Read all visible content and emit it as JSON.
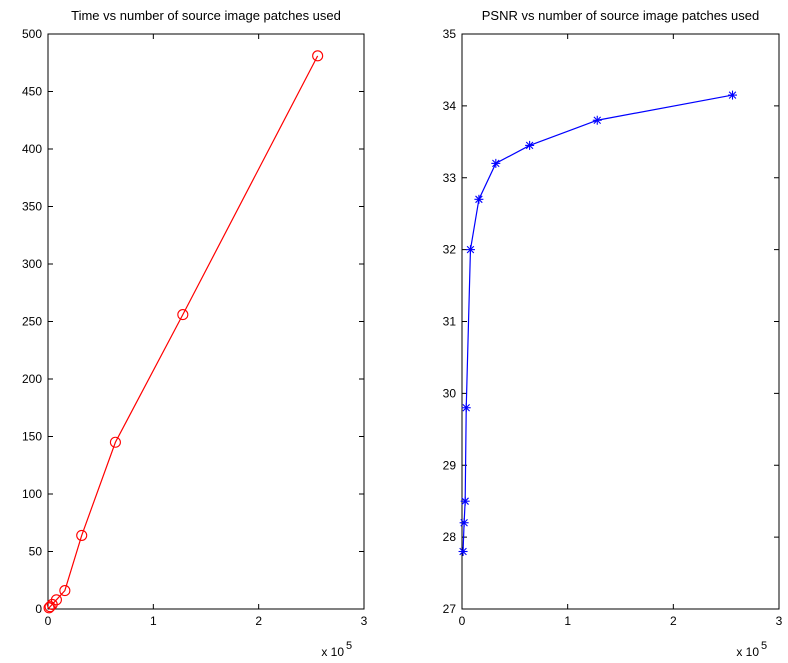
{
  "chart_data": [
    {
      "type": "line",
      "title": "Time vs number of source image patches used",
      "xlabel": "",
      "ylabel": "",
      "x_multiplier_label": "x 10",
      "x_multiplier_exp": "5",
      "xlim": [
        0,
        3
      ],
      "ylim": [
        0,
        500
      ],
      "xticks": [
        "0",
        "1",
        "2",
        "3"
      ],
      "yticks": [
        "0",
        "50",
        "100",
        "150",
        "200",
        "250",
        "300",
        "350",
        "400",
        "450",
        "500"
      ],
      "marker": "circle",
      "color": "#ff0000",
      "grid": false,
      "series": [
        {
          "x": [
            0.01,
            0.02,
            0.04,
            0.08,
            0.16,
            0.32,
            0.64,
            1.28,
            2.56
          ],
          "y": [
            1,
            2,
            4,
            8,
            16,
            64,
            145,
            256,
            481
          ]
        }
      ]
    },
    {
      "type": "line",
      "title": "PSNR vs number of source image patches used",
      "xlabel": "",
      "ylabel": "",
      "x_multiplier_label": "x 10",
      "x_multiplier_exp": "5",
      "xlim": [
        0,
        3
      ],
      "ylim": [
        27,
        35
      ],
      "xticks": [
        "0",
        "1",
        "2",
        "3"
      ],
      "yticks": [
        "27",
        "28",
        "29",
        "30",
        "31",
        "32",
        "33",
        "34",
        "35"
      ],
      "marker": "asterisk",
      "color": "#0000ff",
      "grid": false,
      "series": [
        {
          "x": [
            0.01,
            0.02,
            0.03,
            0.04,
            0.08,
            0.16,
            0.32,
            0.64,
            1.28,
            2.56
          ],
          "y": [
            27.8,
            28.2,
            28.5,
            29.8,
            32.0,
            32.7,
            33.2,
            33.45,
            33.8,
            34.15
          ]
        }
      ]
    }
  ]
}
